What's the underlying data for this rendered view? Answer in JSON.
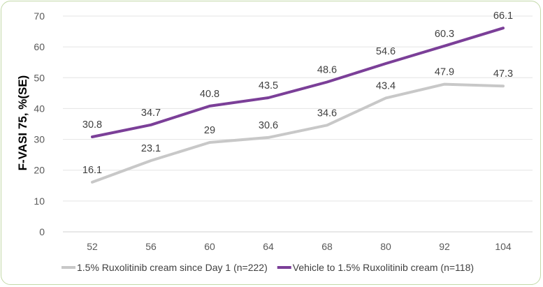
{
  "chart_data": {
    "type": "line",
    "title": "",
    "xlabel": "",
    "ylabel": "F-VASI 75, %(SE)",
    "categories": [
      "52",
      "56",
      "60",
      "64",
      "68",
      "80",
      "92",
      "104"
    ],
    "ylim": [
      0,
      70
    ],
    "yticks": [
      0,
      10,
      20,
      30,
      40,
      50,
      60,
      70
    ],
    "grid": true,
    "legend_position": "bottom",
    "series": [
      {
        "name": "1.5% Ruxolitinib cream since Day 1 (n=222)",
        "color": "#c8c8c8",
        "values": [
          16.1,
          23.1,
          29,
          30.6,
          34.6,
          43.4,
          47.9,
          47.3
        ],
        "labels": [
          "16.1",
          "23.1",
          "29",
          "30.6",
          "34.6",
          "43.4",
          "47.9",
          "47.3"
        ]
      },
      {
        "name": "Vehicle to 1.5% Ruxolitinib cream (n=118)",
        "color": "#7b3f98",
        "values": [
          30.8,
          34.7,
          40.8,
          43.5,
          48.6,
          54.6,
          60.3,
          66.1
        ],
        "labels": [
          "30.8",
          "34.7",
          "40.8",
          "43.5",
          "48.6",
          "54.6",
          "60.3",
          "66.1"
        ]
      }
    ]
  }
}
